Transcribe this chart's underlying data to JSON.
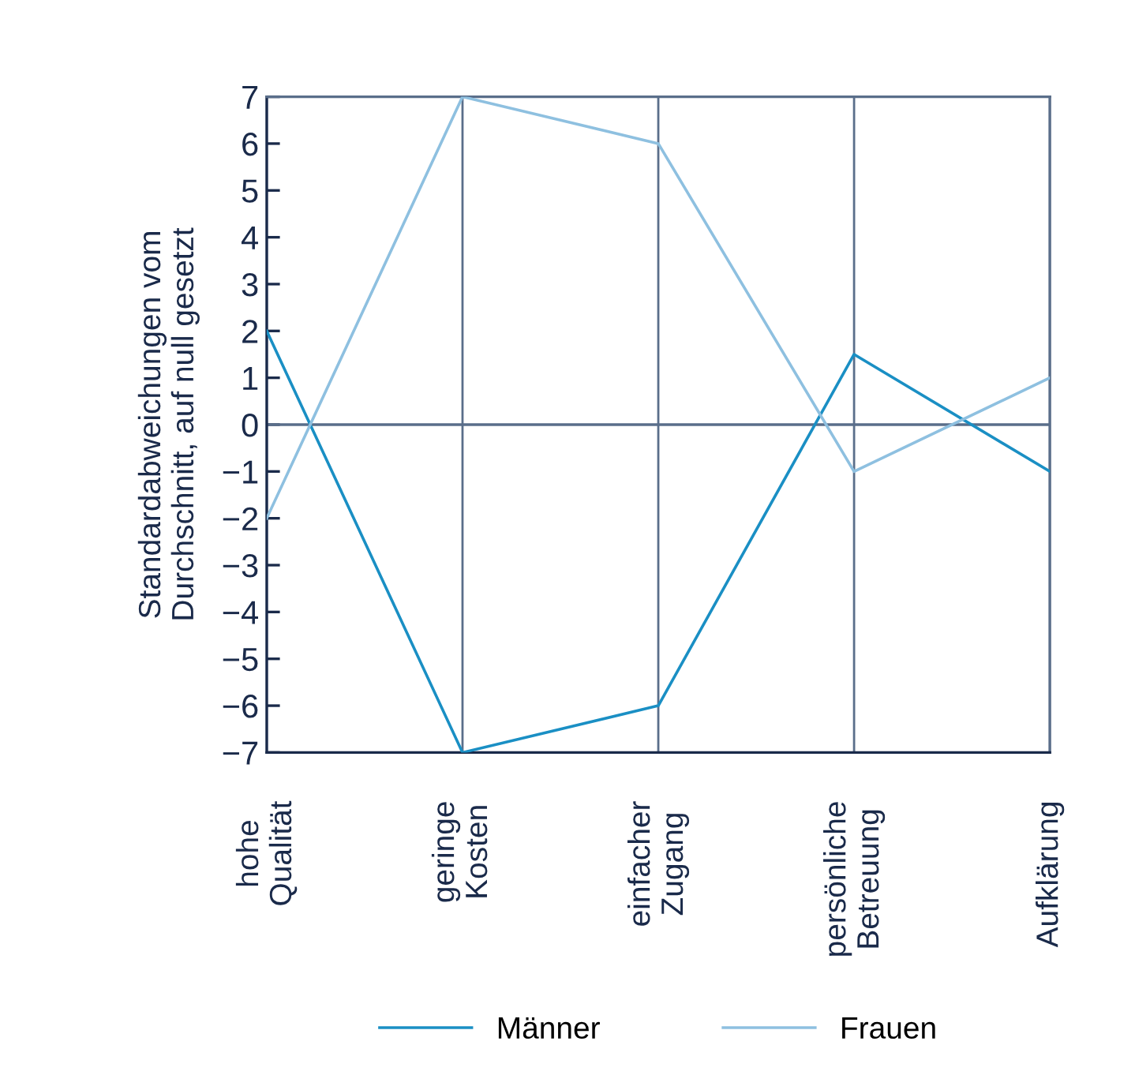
{
  "chart_data": {
    "type": "line",
    "ylabel": "Standardabweichungen vom\nDurchschnitt, auf null gesetzt",
    "categories": [
      "hohe\nQualität",
      "geringe\nKosten",
      "einfacher\nZugang",
      "persönliche\nBetreuung",
      "Aufklärung"
    ],
    "series": [
      {
        "name": "Männer",
        "color": "#1a8fc4",
        "values": [
          2,
          -7,
          -6,
          1.5,
          -1
        ]
      },
      {
        "name": "Frauen",
        "color": "#8ec0e0",
        "values": [
          -2,
          7,
          6,
          -1,
          1
        ]
      }
    ],
    "ylim": [
      -7,
      7
    ],
    "yticks": [
      {
        "value": 7,
        "label": "7"
      },
      {
        "value": 6,
        "label": "6"
      },
      {
        "value": 5,
        "label": "5"
      },
      {
        "value": 4,
        "label": "4"
      },
      {
        "value": 3,
        "label": "3"
      },
      {
        "value": 2,
        "label": "2"
      },
      {
        "value": 1,
        "label": "1"
      },
      {
        "value": 0,
        "label": "0"
      },
      {
        "value": -1,
        "label": "−1"
      },
      {
        "value": -2,
        "label": "−2"
      },
      {
        "value": -3,
        "label": "−3"
      },
      {
        "value": -4,
        "label": "−4"
      },
      {
        "value": -5,
        "label": "−5"
      },
      {
        "value": -6,
        "label": "−6"
      },
      {
        "value": -7,
        "label": "−7"
      }
    ],
    "ref_lines": [
      {
        "axis": "y",
        "value": 0,
        "color": "#5a6e8a"
      }
    ],
    "grid": "x",
    "legend": "bottom",
    "marker": "none",
    "line_style": "solid"
  }
}
